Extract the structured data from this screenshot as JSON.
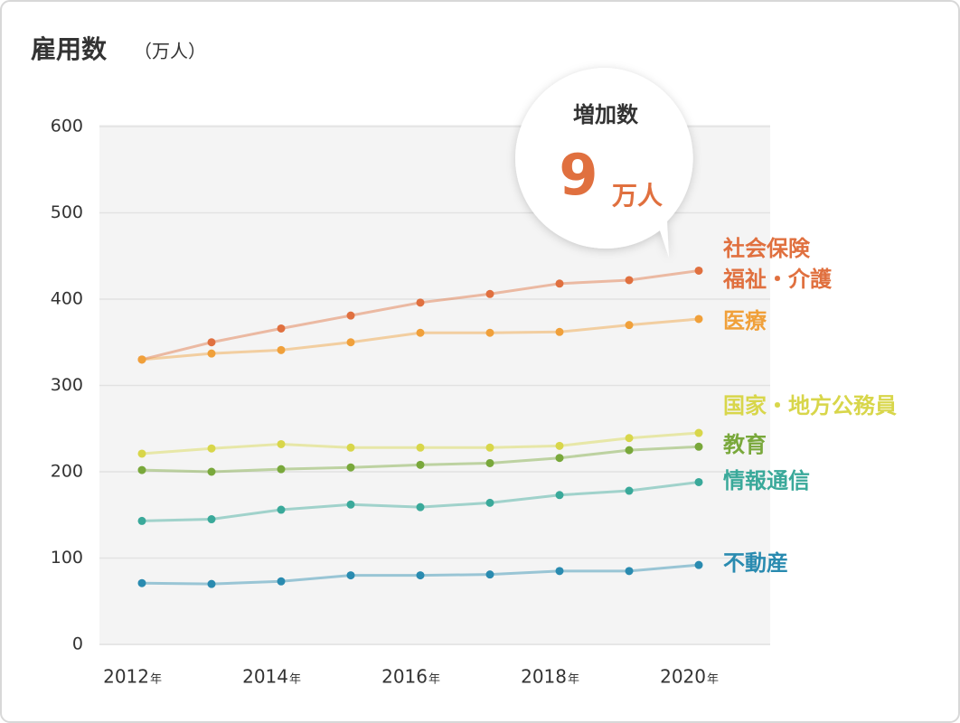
{
  "chart_data": {
    "type": "line",
    "title": "雇用数",
    "title_unit": "（万人）",
    "x": [
      2012,
      2013,
      2014,
      2015,
      2016,
      2017,
      2018,
      2019,
      2020
    ],
    "xlim": [
      2012,
      2020
    ],
    "xticks": [
      2012,
      2014,
      2016,
      2018,
      2020
    ],
    "x_unit": "年",
    "ylim": [
      0,
      600
    ],
    "yticks": [
      0,
      100,
      200,
      300,
      400,
      500,
      600
    ],
    "grid": true,
    "series": [
      {
        "name": "社会保険\n福祉・介護",
        "color": "#e0703f",
        "values": [
          330,
          350,
          366,
          381,
          396,
          406,
          418,
          422,
          433
        ]
      },
      {
        "name": "医療",
        "color": "#f0a03a",
        "values": [
          330,
          337,
          341,
          350,
          361,
          361,
          362,
          370,
          377
        ]
      },
      {
        "name": "国家・地方公務員",
        "color": "#d8d64a",
        "values": [
          221,
          227,
          232,
          228,
          228,
          228,
          230,
          239,
          245
        ]
      },
      {
        "name": "教育",
        "color": "#79a83b",
        "values": [
          202,
          200,
          203,
          205,
          208,
          210,
          216,
          225,
          229
        ]
      },
      {
        "name": "情報通信",
        "color": "#3aa99a",
        "values": [
          143,
          145,
          156,
          162,
          159,
          164,
          173,
          178,
          188
        ]
      },
      {
        "name": "不動産",
        "color": "#2a8bb0",
        "values": [
          71,
          70,
          73,
          80,
          80,
          81,
          85,
          85,
          92
        ]
      }
    ],
    "annotation": {
      "label": "増加数",
      "value": 9,
      "unit": "万人"
    }
  }
}
